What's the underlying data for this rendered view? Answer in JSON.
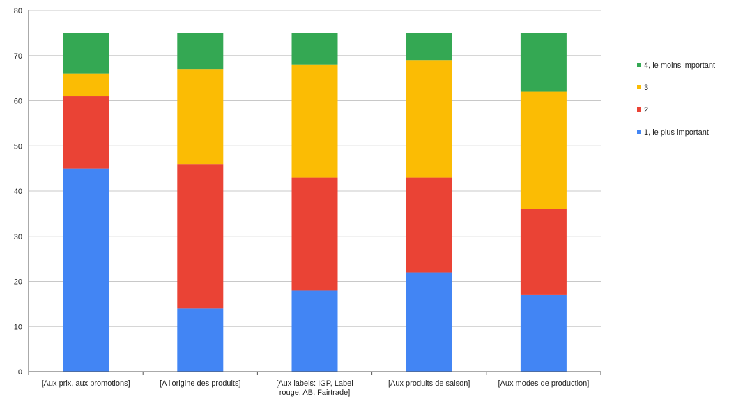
{
  "chart_data": {
    "type": "bar",
    "stacked": true,
    "categories": [
      [
        "[Aux prix, aux promotions]"
      ],
      [
        "[A l'origine des produits]"
      ],
      [
        "[Aux labels: IGP, Label",
        "rouge, AB, Fairtrade]"
      ],
      [
        "[Aux produits de saison]"
      ],
      [
        "[Aux modes de production]"
      ]
    ],
    "series": [
      {
        "name": "1, le plus important",
        "color": "#4285F4",
        "values": [
          45,
          14,
          18,
          22,
          17
        ]
      },
      {
        "name": "2",
        "color": "#EA4335",
        "values": [
          16,
          32,
          25,
          21,
          19
        ]
      },
      {
        "name": "3",
        "color": "#FBBC04",
        "values": [
          5,
          21,
          25,
          26,
          26
        ]
      },
      {
        "name": "4, le moins important",
        "color": "#34A853",
        "values": [
          9,
          8,
          7,
          6,
          13
        ]
      }
    ],
    "ylim": [
      0,
      80
    ],
    "yticks": [
      0,
      10,
      20,
      30,
      40,
      50,
      60,
      70,
      80
    ],
    "grid": true,
    "legend_position": "right",
    "legend_order": [
      "4, le moins important",
      "3",
      "2",
      "1, le plus important"
    ]
  }
}
